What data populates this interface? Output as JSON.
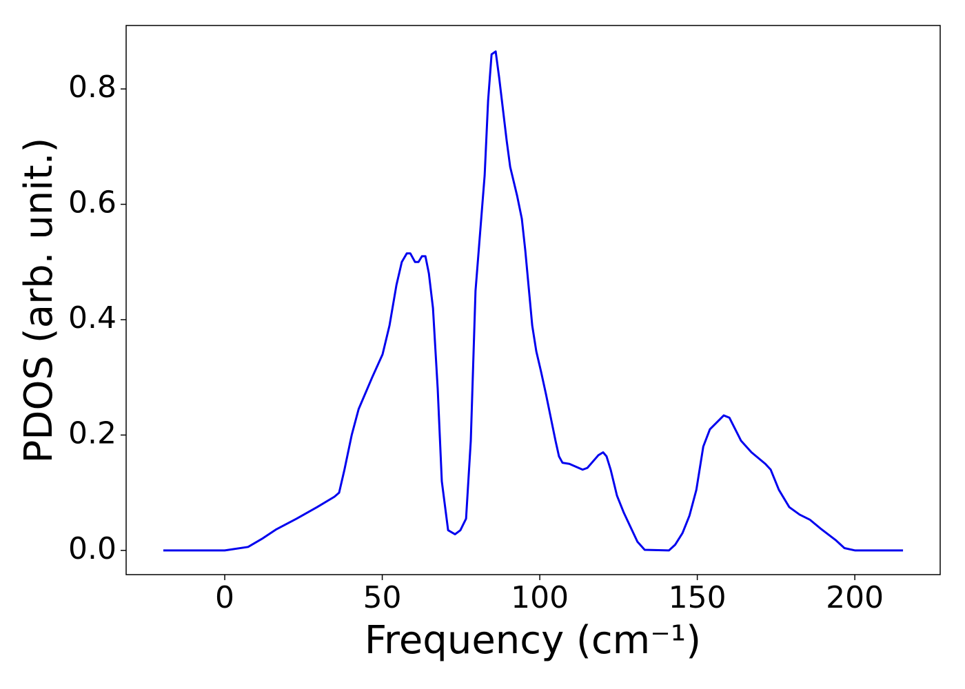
{
  "chart_data": {
    "type": "line",
    "xlabel": "Frequency (cm⁻¹)",
    "ylabel": "PDOS (arb. unit.)",
    "xlim": [
      -31.3,
      227.1
    ],
    "ylim": [
      -0.042,
      0.91
    ],
    "xticks": [
      0,
      50,
      100,
      150,
      200
    ],
    "yticks": [
      {
        "value": 0,
        "label": "0.0"
      },
      0.2,
      0.4,
      0.6,
      0.8
    ],
    "grid": false,
    "series": [
      {
        "name": "PDOS",
        "color": "#0000ee",
        "x": [
          -19.5,
          0,
          7.4,
          11.8,
          16.2,
          22.8,
          29.3,
          34.8,
          36.3,
          38,
          40.3,
          42.5,
          46.8,
          50.1,
          52.3,
          54.5,
          56.2,
          57.8,
          58.9,
          60.4,
          61.5,
          62.6,
          63.7,
          64.8,
          66.1,
          67.6,
          68.9,
          70.9,
          73.1,
          74.8,
          76.6,
          78.1,
          79.6,
          82.5,
          83.6,
          84.7,
          86,
          87.1,
          89.5,
          90.6,
          92.8,
          94.3,
          95.4,
          97.6,
          98.9,
          100.4,
          102,
          105,
          106.1,
          107.2,
          109.4,
          113.6,
          115.1,
          118.6,
          120.1,
          121.2,
          122.5,
          124.5,
          126.7,
          131,
          133.3,
          141,
          143,
          145.3,
          147.5,
          149.7,
          151.9,
          154,
          158.4,
          160.2,
          163.9,
          167.2,
          171.6,
          173.3,
          175.9,
          179.2,
          182.5,
          185.8,
          189.1,
          193.9,
          196.7,
          200,
          215.3
        ],
        "values": [
          0,
          0,
          0.006,
          0.02,
          0.036,
          0.055,
          0.075,
          0.093,
          0.1,
          0.14,
          0.2,
          0.245,
          0.3,
          0.34,
          0.39,
          0.46,
          0.5,
          0.515,
          0.515,
          0.5,
          0.5,
          0.51,
          0.51,
          0.48,
          0.42,
          0.28,
          0.12,
          0.035,
          0.028,
          0.035,
          0.055,
          0.19,
          0.45,
          0.65,
          0.78,
          0.86,
          0.865,
          0.82,
          0.71,
          0.665,
          0.615,
          0.575,
          0.52,
          0.39,
          0.345,
          0.31,
          0.27,
          0.19,
          0.163,
          0.152,
          0.15,
          0.14,
          0.143,
          0.165,
          0.17,
          0.163,
          0.14,
          0.095,
          0.065,
          0.015,
          0.001,
          0,
          0.01,
          0.03,
          0.06,
          0.105,
          0.18,
          0.21,
          0.234,
          0.23,
          0.19,
          0.17,
          0.15,
          0.14,
          0.105,
          0.075,
          0.062,
          0.053,
          0.038,
          0.018,
          0.004,
          0,
          0
        ]
      }
    ]
  }
}
